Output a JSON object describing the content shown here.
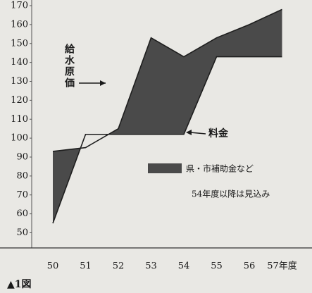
{
  "chart_data": {
    "type": "line",
    "categories": [
      "50",
      "51",
      "52",
      "53",
      "54",
      "55",
      "56",
      "57年度"
    ],
    "series": [
      {
        "name": "給水原価",
        "color": "#1e1e1e",
        "values": [
          93,
          95,
          105,
          153,
          143,
          153,
          160,
          168
        ]
      },
      {
        "name": "料金",
        "color": "#1e1e1e",
        "values": [
          55,
          102,
          102,
          102,
          102,
          143,
          143,
          143
        ]
      }
    ],
    "fill_between": {
      "label": "県・市補助金など",
      "color": "#4a4a4a"
    },
    "annotation": "54年度以降は見込み",
    "caption": "▲1図",
    "ylim": [
      42,
      170
    ],
    "yticks": [
      50,
      60,
      70,
      80,
      90,
      100,
      110,
      120,
      130,
      140,
      150,
      160,
      170
    ],
    "grid": false
  }
}
